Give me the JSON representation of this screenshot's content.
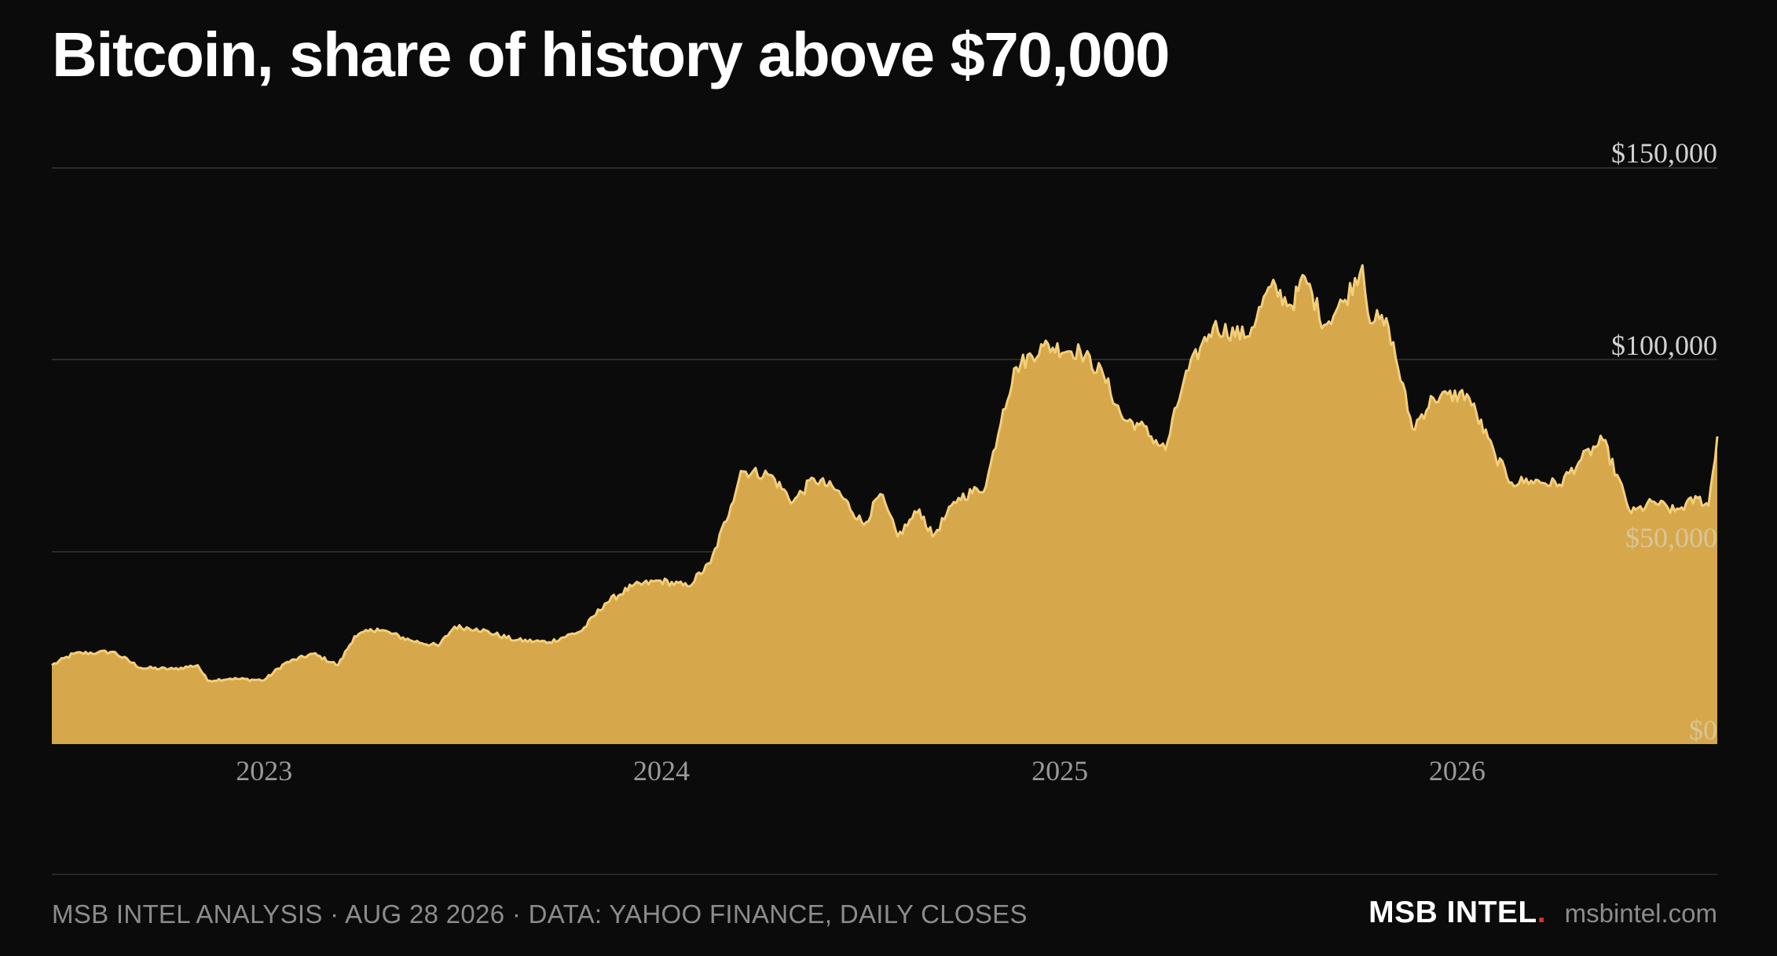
{
  "title": "Bitcoin, share of history above $70,000",
  "footer": {
    "source": "MSB INTEL ANALYSIS · AUG 28 2026 · DATA: YAHOO FINANCE, DAILY CLOSES",
    "brand": "MSB INTEL",
    "brand_dot": ".",
    "url": "msbintel.com"
  },
  "colors": {
    "background": "#0b0b0b",
    "area_fill": "#d6a84b",
    "area_line": "#f4cf7a",
    "grid": "#2a2a2a",
    "brand_dot": "#e0302f"
  },
  "chart_data": {
    "type": "area",
    "title": "Bitcoin, share of history above $70,000",
    "xlabel": "",
    "ylabel": "",
    "ylim": [
      0,
      150000
    ],
    "xlim": [
      "2022-06-20",
      "2026-08-28"
    ],
    "y_axis_position": "right",
    "grid": true,
    "y_ticks": [
      {
        "value": 150000,
        "label": "$150,000"
      },
      {
        "value": 100000,
        "label": "$100,000"
      },
      {
        "value": 50000,
        "label": "$50,000"
      },
      {
        "value": 0,
        "label": "$0"
      }
    ],
    "x_ticks": [
      {
        "date": "2023-01-01",
        "label": "2023"
      },
      {
        "date": "2024-01-01",
        "label": "2024"
      },
      {
        "date": "2025-01-01",
        "label": "2025"
      },
      {
        "date": "2026-01-01",
        "label": "2026"
      }
    ],
    "x": [
      "2022-06-20",
      "2022-07-10",
      "2022-08-01",
      "2022-08-15",
      "2022-09-10",
      "2022-10-10",
      "2022-11-01",
      "2022-11-10",
      "2022-12-01",
      "2023-01-01",
      "2023-01-20",
      "2023-02-15",
      "2023-03-10",
      "2023-03-25",
      "2023-04-15",
      "2023-05-15",
      "2023-06-10",
      "2023-06-25",
      "2023-07-15",
      "2023-08-20",
      "2023-09-20",
      "2023-10-20",
      "2023-11-10",
      "2023-12-05",
      "2023-12-31",
      "2024-01-25",
      "2024-02-15",
      "2024-03-05",
      "2024-03-14",
      "2024-04-10",
      "2024-05-01",
      "2024-05-20",
      "2024-06-10",
      "2024-07-05",
      "2024-07-20",
      "2024-08-05",
      "2024-08-25",
      "2024-09-06",
      "2024-09-30",
      "2024-10-25",
      "2024-11-10",
      "2024-11-22",
      "2024-12-17",
      "2025-01-20",
      "2025-02-10",
      "2025-02-28",
      "2025-03-15",
      "2025-04-08",
      "2025-04-25",
      "2025-05-10",
      "2025-05-22",
      "2025-06-22",
      "2025-07-14",
      "2025-08-02",
      "2025-08-14",
      "2025-09-01",
      "2025-09-20",
      "2025-10-06",
      "2025-10-11",
      "2025-10-30",
      "2025-11-21",
      "2025-12-10",
      "2026-01-10",
      "2026-02-05",
      "2026-02-20",
      "2026-03-10",
      "2026-04-05",
      "2026-04-25",
      "2026-05-15",
      "2026-06-10",
      "2026-07-01",
      "2026-07-20",
      "2026-08-10",
      "2026-08-20",
      "2026-08-28"
    ],
    "series": [
      {
        "values": [
          20500,
          23500,
          23800,
          24000,
          19800,
          19500,
          20500,
          16500,
          17000,
          16600,
          21000,
          23500,
          20500,
          28000,
          30000,
          27000,
          25500,
          30500,
          30000,
          27000,
          26500,
          29500,
          36500,
          41000,
          42500,
          41000,
          47000,
          62000,
          71000,
          70000,
          63000,
          69000,
          66000,
          57000,
          65000,
          54000,
          61000,
          54000,
          64000,
          67000,
          87000,
          98000,
          103500,
          102000,
          96000,
          84500,
          83000,
          76500,
          94500,
          103000,
          108500,
          106000,
          119000,
          114000,
          121500,
          109000,
          115500,
          124500,
          112000,
          108500,
          82000,
          90000,
          91000,
          75000,
          68000,
          68500,
          67500,
          74000,
          79000,
          60000,
          63000,
          60500,
          64000,
          62000,
          80000
        ]
      }
    ]
  }
}
